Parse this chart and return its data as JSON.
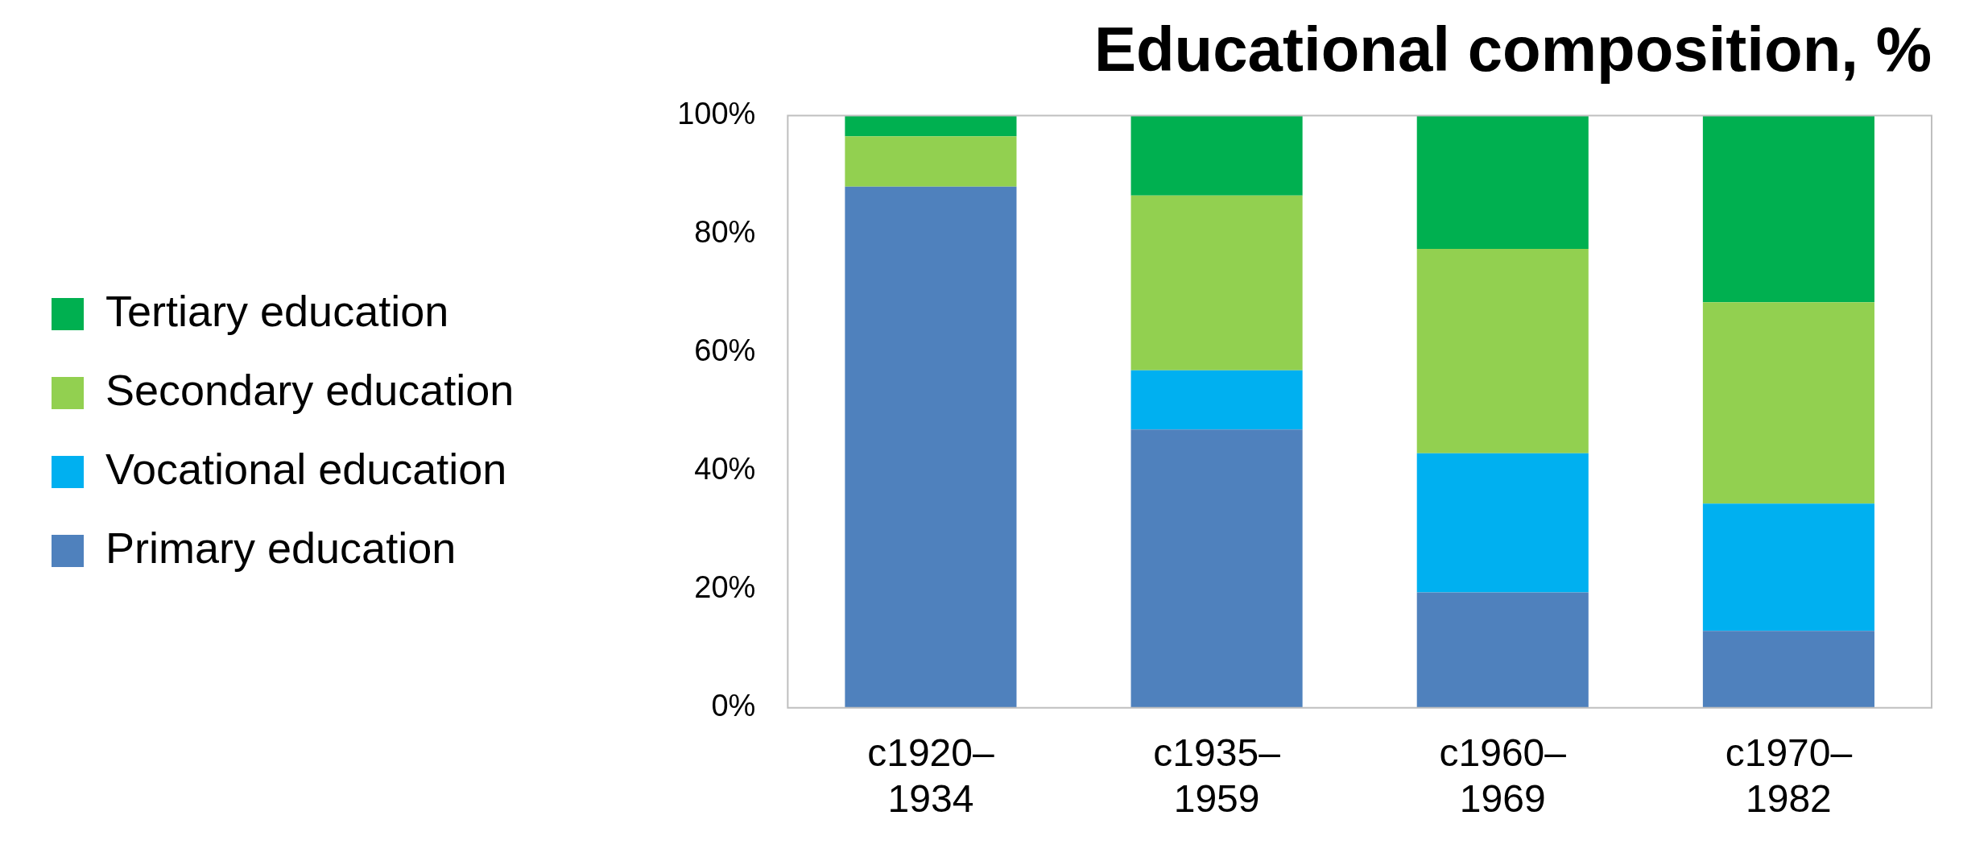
{
  "chart_data": {
    "type": "bar",
    "title": "Educational composition, %",
    "categories": [
      "c1920–1934",
      "c1935–1959",
      "c1960–1969",
      "c1970–1982"
    ],
    "stacked": true,
    "ylim": [
      0,
      100
    ],
    "yticks": [
      {
        "value": 0,
        "label": "0%"
      },
      {
        "value": 20,
        "label": "20%"
      },
      {
        "value": 40,
        "label": "40%"
      },
      {
        "value": 60,
        "label": "60%"
      },
      {
        "value": 80,
        "label": "80%"
      },
      {
        "value": 100,
        "label": "100%"
      }
    ],
    "grid": false,
    "legend": "left",
    "series": [
      {
        "name": "Primary education",
        "color": "#4f81bd",
        "values": [
          88,
          47,
          19.5,
          13
        ]
      },
      {
        "name": "Vocational education",
        "color": "#00b0f0",
        "values": [
          0,
          10,
          23.5,
          21.5
        ]
      },
      {
        "name": "Secondary education",
        "color": "#92d050",
        "values": [
          8.5,
          29.5,
          34.5,
          34
        ]
      },
      {
        "name": "Tertiary education",
        "color": "#00b050",
        "values": [
          3.5,
          13.5,
          22.5,
          31.5
        ]
      }
    ]
  }
}
